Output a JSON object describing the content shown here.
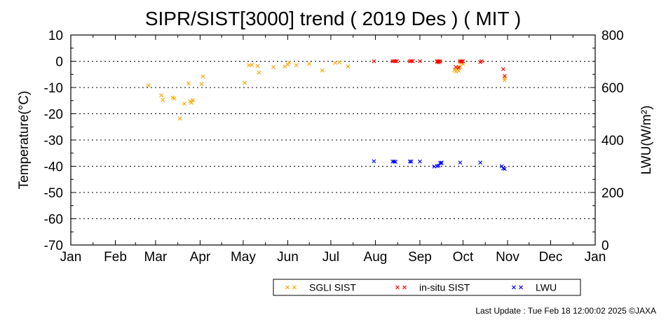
{
  "chart_data": {
    "type": "scatter",
    "title": "SIPR/SIST[3000] trend ( 2019 Des ) ( MIT )",
    "ylabel_left": "Temperature(°C)",
    "ylabel_right": "LWU(W/m²)",
    "ylim_left": [
      -70,
      10
    ],
    "yticks_left": [
      10,
      0,
      -10,
      -20,
      -30,
      -40,
      -50,
      -60,
      -70
    ],
    "ylim_right": [
      0,
      800
    ],
    "yticks_right": [
      800,
      600,
      400,
      200,
      0
    ],
    "xlim": [
      0,
      365
    ],
    "x_unit": "day of year",
    "xticks": [
      {
        "day": 0,
        "label": "Jan"
      },
      {
        "day": 31,
        "label": "Feb"
      },
      {
        "day": 59,
        "label": "Mar"
      },
      {
        "day": 90,
        "label": "Apr"
      },
      {
        "day": 120,
        "label": "May"
      },
      {
        "day": 151,
        "label": "Jun"
      },
      {
        "day": 181,
        "label": "Jul"
      },
      {
        "day": 212,
        "label": "Aug"
      },
      {
        "day": 243,
        "label": "Sep"
      },
      {
        "day": 273,
        "label": "Oct"
      },
      {
        "day": 304,
        "label": "Nov"
      },
      {
        "day": 334,
        "label": "Dec"
      },
      {
        "day": 365,
        "label": "Jan"
      }
    ],
    "gridlines_left": [
      0,
      -10,
      -20,
      -30,
      -40,
      -50,
      -60
    ],
    "grid": "horizontal dotted",
    "legend_placement": "bottom-right",
    "series": [
      {
        "name": "SGLI SIST",
        "axis": "left",
        "color": "#FFA500",
        "marker": "x",
        "points": [
          [
            54,
            -9.2
          ],
          [
            63,
            -13
          ],
          [
            64,
            -14.7
          ],
          [
            71,
            -13.8
          ],
          [
            72,
            -14.2
          ],
          [
            76,
            -21.8
          ],
          [
            79,
            -16.2
          ],
          [
            82,
            -8.5
          ],
          [
            83,
            -15.3
          ],
          [
            84,
            -15.8
          ],
          [
            85,
            -14.8
          ],
          [
            91,
            -8.7
          ],
          [
            92,
            -5.8
          ],
          [
            121,
            -8.2
          ],
          [
            124,
            -1.5
          ],
          [
            126,
            -1.4
          ],
          [
            130,
            -1.8
          ],
          [
            131,
            -4.3
          ],
          [
            141,
            -2.2
          ],
          [
            149,
            -2.0
          ],
          [
            151,
            -1.2
          ],
          [
            152,
            -0.5
          ],
          [
            157,
            -1.5
          ],
          [
            166,
            -1.0
          ],
          [
            175,
            -3.5
          ],
          [
            184,
            -0.6
          ],
          [
            187,
            -0.4
          ],
          [
            193,
            -2.0
          ],
          [
            255,
            -0.1
          ],
          [
            256,
            0.0
          ],
          [
            256,
            -0.3
          ],
          [
            257,
            -0.2
          ],
          [
            267,
            -3.3
          ],
          [
            268,
            -3.9
          ],
          [
            269,
            -2.7
          ],
          [
            270,
            -3.6
          ],
          [
            271,
            -2.2
          ],
          [
            271,
            -0.3
          ],
          [
            272,
            -0.7
          ],
          [
            273,
            -1.0
          ],
          [
            302,
            -6.4
          ],
          [
            302,
            -7.2
          ]
        ]
      },
      {
        "name": "in-situ SIST",
        "axis": "left",
        "color": "#FF0000",
        "marker": "x",
        "points": [
          [
            211,
            0.0
          ],
          [
            224,
            0.0
          ],
          [
            225,
            0.1
          ],
          [
            226,
            0.0
          ],
          [
            227,
            0.0
          ],
          [
            236,
            0.0
          ],
          [
            237,
            0.1
          ],
          [
            238,
            0.0
          ],
          [
            243,
            0.0
          ],
          [
            255,
            0.0
          ],
          [
            255,
            -0.2
          ],
          [
            256,
            0.0
          ],
          [
            256,
            -0.4
          ],
          [
            257,
            0.0
          ],
          [
            268,
            -2.2
          ],
          [
            270,
            -2.4
          ],
          [
            271,
            0.0
          ],
          [
            272,
            0.0
          ],
          [
            272,
            -0.1
          ],
          [
            273,
            0.0
          ],
          [
            285,
            -0.3
          ],
          [
            286,
            0.0
          ],
          [
            301,
            -3.0
          ],
          [
            302,
            -5.6
          ]
        ]
      },
      {
        "name": "LWU",
        "axis": "right",
        "color": "#0000FF",
        "marker": "x",
        "points": [
          [
            211,
            319
          ],
          [
            224,
            318
          ],
          [
            225,
            318
          ],
          [
            226,
            317
          ],
          [
            236,
            318
          ],
          [
            237,
            318
          ],
          [
            243,
            318
          ],
          [
            253,
            299
          ],
          [
            255,
            301
          ],
          [
            256,
            302
          ],
          [
            257,
            312
          ],
          [
            258,
            312
          ],
          [
            258,
            314
          ],
          [
            271,
            314
          ],
          [
            285,
            314
          ],
          [
            300,
            300
          ],
          [
            301,
            292
          ],
          [
            302,
            290
          ]
        ]
      }
    ]
  },
  "footer": {
    "last_update": "Last Update : Tue Feb 18 12:00:02 2025  ©JAXA"
  }
}
